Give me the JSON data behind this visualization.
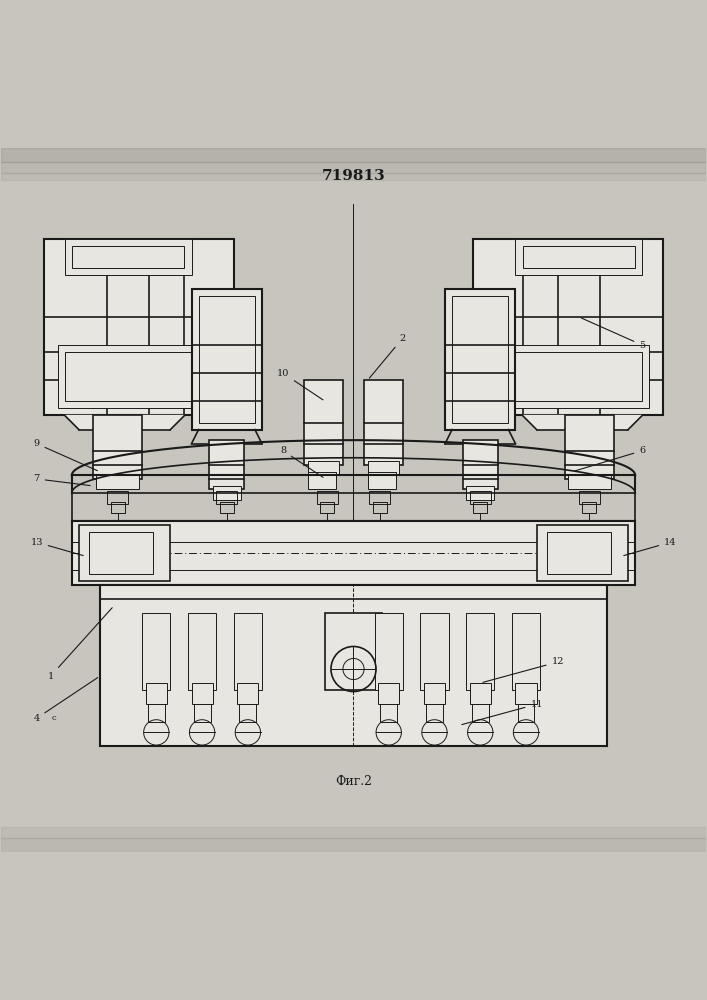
{
  "title": "719813",
  "fig_label": "Фиг.2",
  "bg_color": "#c8c5be",
  "drawing_bg": "#e8e6e0",
  "line_color": "#1a1a1a",
  "line_width": 1.2,
  "fig_width": 7.07,
  "fig_height": 10.0,
  "dpi": 100
}
